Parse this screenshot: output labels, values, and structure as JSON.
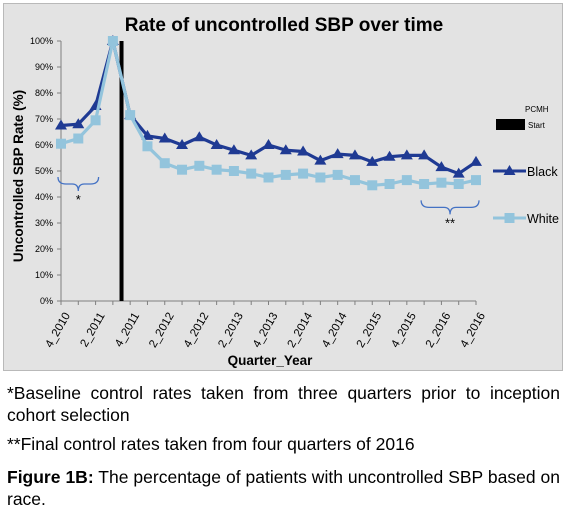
{
  "chart_data": {
    "type": "line",
    "title": "Rate of uncontrolled SBP over time",
    "xlabel": "Quarter_Year",
    "ylabel": "Uncontrolled SBP Rate (%)",
    "ylim": [
      0,
      100
    ],
    "yticks": [
      "0%",
      "10%",
      "20%",
      "30%",
      "40%",
      "50%",
      "60%",
      "70%",
      "80%",
      "90%",
      "100%"
    ],
    "x": [
      "4_2010",
      "1_2011",
      "2_2011",
      "3_2011",
      "4_2011",
      "1_2012",
      "2_2012",
      "3_2012",
      "4_2012",
      "1_2013",
      "2_2013",
      "3_2013",
      "4_2013",
      "1_2014",
      "2_2014",
      "3_2014",
      "4_2014",
      "1_2015",
      "2_2015",
      "3_2015",
      "4_2015",
      "1_2016",
      "2_2016",
      "3_2016",
      "4_2016"
    ],
    "xtick_labels": [
      "4_2010",
      "2_2011",
      "4_2011",
      "2_2012",
      "4_2012",
      "2_2013",
      "4_2013",
      "2_2014",
      "4_2014",
      "2_2015",
      "4_2015",
      "2_2016",
      "4_2016"
    ],
    "series": [
      {
        "name": "Black",
        "color": "#1f3a93",
        "marker": "triangle",
        "values": [
          67.5,
          68,
          75,
          100,
          71.5,
          63.5,
          62.5,
          60,
          63,
          60,
          58,
          56,
          60,
          58,
          57.5,
          54,
          56.5,
          56,
          53.5,
          55.5,
          56,
          56,
          51.5,
          49,
          53.5
        ]
      },
      {
        "name": "White",
        "color": "#93c4dc",
        "marker": "square",
        "values": [
          60.5,
          62.5,
          69.5,
          100,
          71.5,
          59.5,
          53,
          50.5,
          52,
          50.5,
          50,
          49,
          47.5,
          48.5,
          49,
          47.5,
          48.5,
          46.5,
          44.5,
          45,
          46.5,
          45,
          45.5,
          45,
          46.5
        ]
      }
    ],
    "pcmh": {
      "label_line1": "PCMH",
      "label_line2": "Start",
      "x": "3_2011",
      "color": "#000000"
    },
    "annotations": [
      {
        "text": "*",
        "from": "4_2010",
        "to": "2_2011",
        "level": 45
      },
      {
        "text": "**",
        "from": "1_2016",
        "to": "4_2016",
        "level": 36
      }
    ],
    "grid": false,
    "legend": "right"
  },
  "notes": {
    "baseline": "*Baseline control rates taken from three quarters prior to inception cohort selection",
    "final": "**Final control rates taken from four quarters of 2016"
  },
  "figure_caption": {
    "label": "Figure 1B:",
    "text": " The percentage of patients with uncontrolled SBP based on race."
  }
}
